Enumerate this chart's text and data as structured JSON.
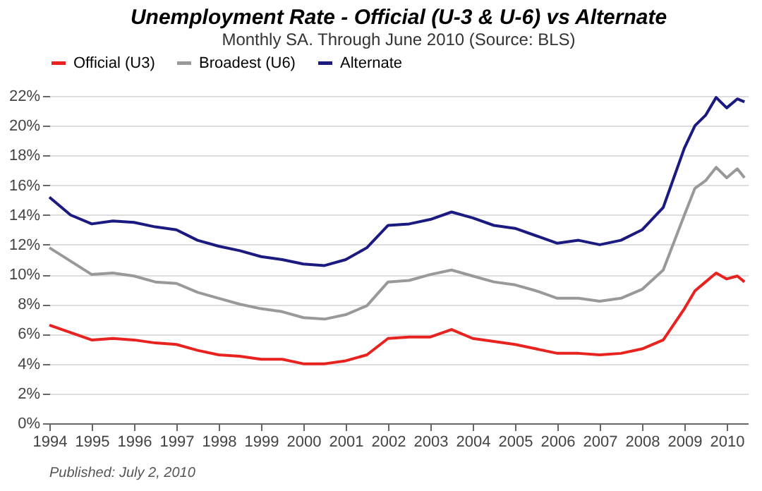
{
  "chart_data": {
    "type": "line",
    "title": "Unemployment Rate - Official (U-3 & U-6) vs Alternate",
    "subtitle": "Monthly SA. Through June 2010  (Source: BLS)",
    "x": [
      1994.0,
      1994.5,
      1995.0,
      1995.5,
      1996.0,
      1996.5,
      1997.0,
      1997.5,
      1998.0,
      1998.5,
      1999.0,
      1999.5,
      2000.0,
      2000.5,
      2001.0,
      2001.5,
      2002.0,
      2002.5,
      2003.0,
      2003.5,
      2004.0,
      2004.5,
      2005.0,
      2005.5,
      2006.0,
      2006.5,
      2007.0,
      2007.5,
      2008.0,
      2008.5,
      2009.0,
      2009.25,
      2009.5,
      2009.75,
      2010.0,
      2010.25,
      2010.42
    ],
    "series": [
      {
        "name": "Official (U3)",
        "color": "#e8231f",
        "values": [
          6.6,
          6.1,
          5.6,
          5.7,
          5.6,
          5.4,
          5.3,
          4.9,
          4.6,
          4.5,
          4.3,
          4.3,
          4.0,
          4.0,
          4.2,
          4.6,
          5.7,
          5.8,
          5.8,
          6.3,
          5.7,
          5.5,
          5.3,
          5.0,
          4.7,
          4.7,
          4.6,
          4.7,
          5.0,
          5.6,
          7.7,
          8.9,
          9.5,
          10.1,
          9.7,
          9.9,
          9.5
        ]
      },
      {
        "name": "Broadest (U6)",
        "color": "#999999",
        "values": [
          11.8,
          10.9,
          10.0,
          10.1,
          9.9,
          9.5,
          9.4,
          8.8,
          8.4,
          8.0,
          7.7,
          7.5,
          7.1,
          7.0,
          7.3,
          7.9,
          9.5,
          9.6,
          10.0,
          10.3,
          9.9,
          9.5,
          9.3,
          8.9,
          8.4,
          8.4,
          8.2,
          8.4,
          9.0,
          10.3,
          14.0,
          15.8,
          16.3,
          17.2,
          16.5,
          17.1,
          16.5
        ]
      },
      {
        "name": "Alternate",
        "color": "#1a1a80",
        "values": [
          15.2,
          14.0,
          13.4,
          13.6,
          13.5,
          13.2,
          13.0,
          12.3,
          11.9,
          11.6,
          11.2,
          11.0,
          10.7,
          10.6,
          11.0,
          11.8,
          13.3,
          13.4,
          13.7,
          14.2,
          13.8,
          13.3,
          13.1,
          12.6,
          12.1,
          12.3,
          12.0,
          12.3,
          13.0,
          14.5,
          18.5,
          20.0,
          20.7,
          21.9,
          21.2,
          21.8,
          21.6
        ]
      }
    ],
    "xlim": [
      1994,
      2010.5
    ],
    "xticks": [
      1994,
      1995,
      1996,
      1997,
      1998,
      1999,
      2000,
      2001,
      2002,
      2003,
      2004,
      2005,
      2006,
      2007,
      2008,
      2009,
      2010
    ],
    "ylim": [
      0,
      22
    ],
    "yticks": [
      {
        "value": 0,
        "label": "0%"
      },
      {
        "value": 2,
        "label": "2%"
      },
      {
        "value": 4,
        "label": "4%"
      },
      {
        "value": 6,
        "label": "6%"
      },
      {
        "value": 8,
        "label": "8%"
      },
      {
        "value": 10,
        "label": "10%"
      },
      {
        "value": 12,
        "label": "12%"
      },
      {
        "value": 14,
        "label": "14%"
      },
      {
        "value": 16,
        "label": "16%"
      },
      {
        "value": 18,
        "label": "18%"
      },
      {
        "value": 20,
        "label": "20%"
      },
      {
        "value": 22,
        "label": "22%"
      }
    ],
    "grid": "y",
    "legend": "top",
    "marker": "none",
    "line_style": "solid",
    "annotations": [
      "Published: July 2, 2010"
    ]
  }
}
